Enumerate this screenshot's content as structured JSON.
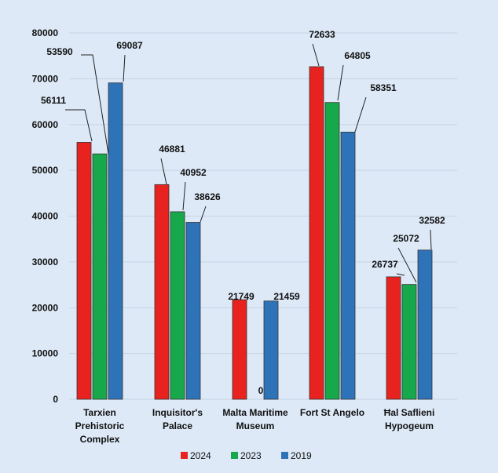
{
  "chart_data": {
    "type": "bar",
    "title": "",
    "xlabel": "",
    "ylabel": "",
    "ylim": [
      0,
      80000
    ],
    "yticks": [
      0,
      10000,
      20000,
      30000,
      40000,
      50000,
      60000,
      70000,
      80000
    ],
    "grid": true,
    "legend_position": "bottom",
    "categories": [
      [
        "Tarxien",
        "Prehistoric",
        "Complex"
      ],
      [
        "Inquisitor's",
        "Palace"
      ],
      [
        "Malta Maritime",
        "Museum"
      ],
      [
        "Fort St Angelo"
      ],
      [
        "Ħal Saflieni",
        "Hypogeum"
      ]
    ],
    "series": [
      {
        "name": "2024",
        "color": "#e8231f",
        "values": [
          56111,
          46881,
          21749,
          72633,
          26737
        ]
      },
      {
        "name": "2023",
        "color": "#16a84a",
        "values": [
          53590,
          40952,
          0,
          64805,
          25072
        ]
      },
      {
        "name": "2019",
        "color": "#2e73b8",
        "values": [
          69087,
          38626,
          21459,
          58351,
          32582
        ]
      }
    ]
  }
}
